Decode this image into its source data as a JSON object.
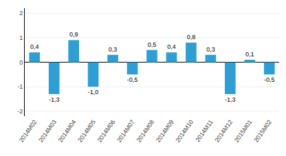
{
  "chart_data": {
    "type": "bar",
    "categories": [
      "2014M02",
      "2014M03",
      "2014M04",
      "2014M05",
      "2014M06",
      "2014M07",
      "2014M08",
      "2014M09",
      "2014M10",
      "2014M11",
      "2014M12",
      "2015M01",
      "2015M02"
    ],
    "values": [
      0.4,
      -1.3,
      0.9,
      -1.0,
      0.3,
      -0.5,
      0.5,
      0.4,
      0.8,
      0.3,
      -1.3,
      0.1,
      -0.5
    ],
    "value_labels": [
      "0,4",
      "-1,3",
      "0,9",
      "-1,0",
      "0,3",
      "-0,5",
      "0,5",
      "0,4",
      "0,8",
      "0,3",
      "-1,3",
      "0,1",
      "-0,5"
    ],
    "data_labels": true,
    "color": "#2e9fd4",
    "ylim": [
      -2.2,
      2.2
    ],
    "yticks": [
      -2,
      -1,
      0,
      1,
      2
    ],
    "grid": true
  }
}
